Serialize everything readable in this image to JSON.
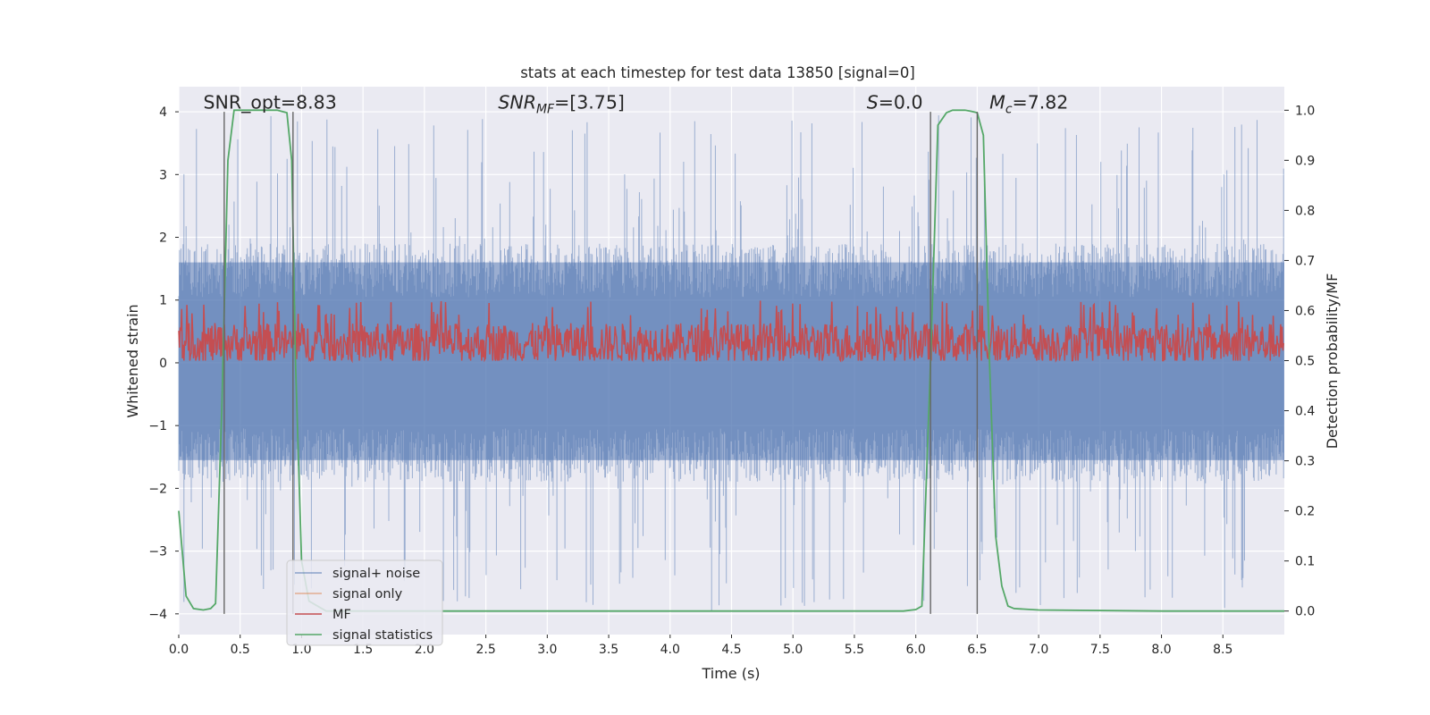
{
  "chart_data": {
    "type": "line",
    "title": "stats at each timestep for test data 13850 [signal=0]",
    "xlabel": "Time (s)",
    "ylabel_left": "Whitened strain",
    "ylabel_right": "Detection probability/MF",
    "xlim": [
      0,
      9.0
    ],
    "ylim_left": [
      -4.33,
      4.4
    ],
    "ylim_right": [
      -0.047,
      1.047
    ],
    "xticks": [
      0.0,
      0.5,
      1.0,
      1.5,
      2.0,
      2.5,
      3.0,
      3.5,
      4.0,
      4.5,
      5.0,
      5.5,
      6.0,
      6.5,
      7.0,
      7.5,
      8.0,
      8.5
    ],
    "xtick_labels": [
      "0.0",
      "0.5",
      "1.0",
      "1.5",
      "2.0",
      "2.5",
      "3.0",
      "3.5",
      "4.0",
      "4.5",
      "5.0",
      "5.5",
      "6.0",
      "6.5",
      "7.0",
      "7.5",
      "8.0",
      "8.5"
    ],
    "yticks_left": [
      -4,
      -3,
      -2,
      -1,
      0,
      1,
      2,
      3,
      4
    ],
    "ytick_labels_left": [
      "−4",
      "−3",
      "−2",
      "−1",
      "0",
      "1",
      "2",
      "3",
      "4"
    ],
    "yticks_right": [
      0.0,
      0.1,
      0.2,
      0.3,
      0.4,
      0.5,
      0.6,
      0.7,
      0.8,
      0.9,
      1.0
    ],
    "ytick_labels_right": [
      "0.0",
      "0.1",
      "0.2",
      "0.3",
      "0.4",
      "0.5",
      "0.6",
      "0.7",
      "0.8",
      "0.9",
      "1.0"
    ],
    "grid": true,
    "legend_placement": "lower-left",
    "annotations": [
      {
        "id": "snr-opt",
        "text": "SNR_opt=8.83",
        "x": 0.2,
        "y": 4.05
      },
      {
        "id": "snr-mf",
        "base": "SNR",
        "sub": "MF",
        "rest": "=[3.75]",
        "x": 2.6,
        "y": 4.05
      },
      {
        "id": "s-stat",
        "italic": "S",
        "rest": "=0.0",
        "x": 5.6,
        "y": 4.05
      },
      {
        "id": "chirp-mass",
        "base": "M",
        "sub": "c",
        "rest": "=7.82",
        "x": 6.6,
        "y": 4.05
      }
    ],
    "vertical_lines_x": [
      0.37,
      0.93,
      6.12,
      6.5
    ],
    "series": [
      {
        "name": "signal+ noise",
        "color": "#4c72b0",
        "axis": "left",
        "style": "noise",
        "envelope": {
          "typical_min": -1.9,
          "typical_max": 1.9,
          "peak_max": 4.0,
          "peak_min": -3.95
        }
      },
      {
        "name": "signal only",
        "color": "#dd8452",
        "axis": "left",
        "style": "line",
        "x": [],
        "values": []
      },
      {
        "name": "MF",
        "color": "#c44e52",
        "axis": "right",
        "style": "noise",
        "envelope": {
          "center": 0.535,
          "spread": 0.04,
          "peak_max": 0.62,
          "peak_min": 0.5
        }
      },
      {
        "name": "signal statistics",
        "color": "#55a868",
        "axis": "right",
        "style": "line",
        "x": [
          0.0,
          0.06,
          0.12,
          0.2,
          0.26,
          0.3,
          0.35,
          0.4,
          0.45,
          0.5,
          0.6,
          0.7,
          0.8,
          0.88,
          0.92,
          0.95,
          1.0,
          1.06,
          1.2,
          2.0,
          3.0,
          4.0,
          5.0,
          5.5,
          5.9,
          6.0,
          6.05,
          6.12,
          6.18,
          6.25,
          6.3,
          6.35,
          6.4,
          6.45,
          6.5,
          6.55,
          6.6,
          6.65,
          6.7,
          6.75,
          6.8,
          7.0,
          8.0,
          9.0
        ],
        "values": [
          0.2,
          0.03,
          0.005,
          0.002,
          0.005,
          0.015,
          0.4,
          0.9,
          1.0,
          1.0,
          1.0,
          1.0,
          1.0,
          0.995,
          0.9,
          0.5,
          0.1,
          0.02,
          0.0,
          0.0,
          0.0,
          0.0,
          0.0,
          0.0,
          0.0,
          0.003,
          0.01,
          0.5,
          0.97,
          0.995,
          1.0,
          1.0,
          1.0,
          0.998,
          0.995,
          0.95,
          0.5,
          0.15,
          0.05,
          0.01,
          0.005,
          0.002,
          0.0,
          0.0
        ]
      }
    ]
  }
}
